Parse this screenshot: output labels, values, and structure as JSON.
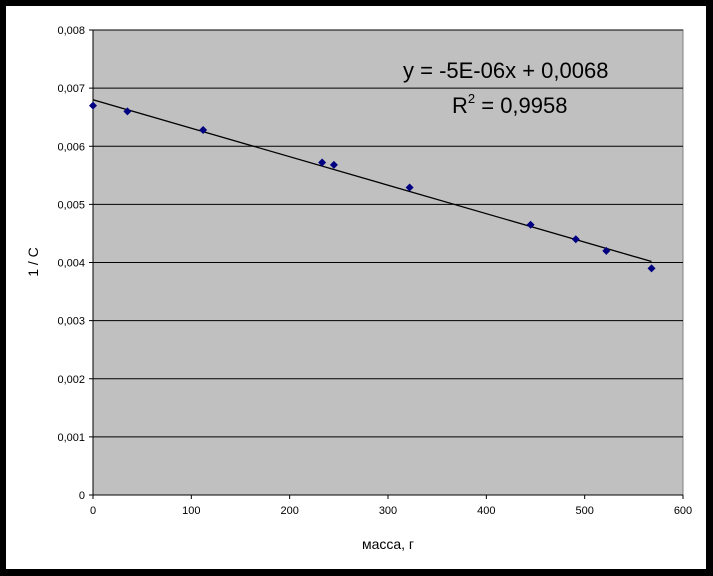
{
  "chart_data": {
    "type": "scatter",
    "xlabel": "масса, г",
    "ylabel": "1 / С",
    "xlim": [
      0,
      600
    ],
    "ylim": [
      0,
      0.008
    ],
    "x_ticks": [
      0,
      100,
      200,
      300,
      400,
      500,
      600
    ],
    "x_tick_labels": [
      "0",
      "100",
      "200",
      "300",
      "400",
      "500",
      "600"
    ],
    "y_ticks": [
      0,
      0.001,
      0.002,
      0.003,
      0.004,
      0.005,
      0.006,
      0.007,
      0.008
    ],
    "y_tick_labels": [
      "0",
      "0,001",
      "0,002",
      "0,003",
      "0,004",
      "0,005",
      "0,006",
      "0,007",
      "0,008"
    ],
    "grid": "horizontal",
    "background_color": "#c0c0c0",
    "marker_color": "#000080",
    "trendline_color": "#000000",
    "series": [
      {
        "x": [
          0,
          35,
          112,
          233,
          245,
          322,
          445,
          491,
          522,
          568
        ],
        "y": [
          0.0067,
          0.0066,
          0.00628,
          0.00572,
          0.00568,
          0.00529,
          0.00465,
          0.0044,
          0.0042,
          0.0039
        ]
      }
    ],
    "trendline": {
      "type": "linear",
      "slope": -4.9e-06,
      "intercept": 0.0068,
      "x_range": [
        0,
        568
      ],
      "equation_text": "y = -5E-06x + 0,0068",
      "r2_label": "R",
      "r2_exponent": "2",
      "r2_value_text": " = 0,9958"
    }
  }
}
